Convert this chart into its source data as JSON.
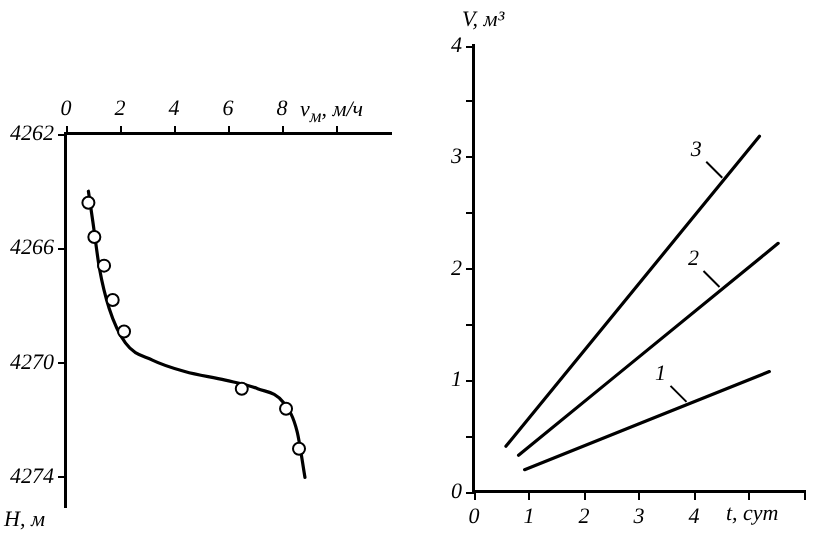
{
  "chart_data": [
    {
      "type": "line",
      "xlabel": "v$_{м}$, м/ч",
      "ylabel": "H, м",
      "xlim": [
        0,
        12
      ],
      "xticks": [
        0,
        2,
        4,
        6,
        8,
        {
          "value": 10,
          "label": null
        }
      ],
      "ylim": [
        4275,
        4262
      ],
      "yticks": [
        4262,
        4266,
        4270,
        4274
      ],
      "grid": false,
      "legend": false,
      "series": [
        {
          "type": "scatter",
          "marker": "circle",
          "color": "#000000",
          "x": [
            0.83,
            1.05,
            1.41,
            1.73,
            2.15,
            6.51,
            8.15,
            8.63
          ],
          "values": [
            4264.4,
            4265.6,
            4266.6,
            4267.8,
            4268.9,
            4270.9,
            4271.6,
            4273.0
          ]
        },
        {
          "type": "line",
          "marker": "none",
          "color": "#000000",
          "x": [
            0.83,
            1.0,
            1.24,
            1.6,
            2.2,
            3.2,
            4.4,
            5.9,
            7.1,
            8.07,
            8.56,
            8.85
          ],
          "values": [
            4264.0,
            4265.1,
            4266.7,
            4268.1,
            4269.3,
            4269.9,
            4270.3,
            4270.6,
            4270.9,
            4271.4,
            4272.4,
            4274.0
          ]
        }
      ]
    },
    {
      "type": "line",
      "ylabel": "V, м³",
      "xlabel": "t, сут",
      "xlim": [
        0,
        6
      ],
      "xticks": [
        0,
        1,
        2,
        3,
        4,
        {
          "value": 5,
          "label": null
        },
        {
          "value": 6,
          "label": null
        }
      ],
      "ylim": [
        0,
        4
      ],
      "yticks": [
        0,
        {
          "value": 0.5,
          "label": null
        },
        1,
        {
          "value": 1.5,
          "label": null
        },
        2,
        {
          "value": 2.5,
          "label": null
        },
        3,
        {
          "value": 3.5,
          "label": null
        },
        4
      ],
      "grid": false,
      "legend": false,
      "marker": "none",
      "annotations": [
        {
          "text": "1",
          "x": 3.9,
          "y": 0.79
        },
        {
          "text": "2",
          "x": 4.5,
          "y": 1.82
        },
        {
          "text": "3",
          "x": 4.55,
          "y": 2.8
        }
      ],
      "series": [
        {
          "color": "#000000",
          "x": [
            0.92,
            5.37
          ],
          "values": [
            0.2,
            1.08
          ]
        },
        {
          "color": "#000000",
          "x": [
            0.81,
            5.53
          ],
          "values": [
            0.33,
            2.23
          ]
        },
        {
          "color": "#000000",
          "x": [
            0.58,
            5.19
          ],
          "values": [
            0.41,
            3.19
          ]
        }
      ]
    }
  ]
}
